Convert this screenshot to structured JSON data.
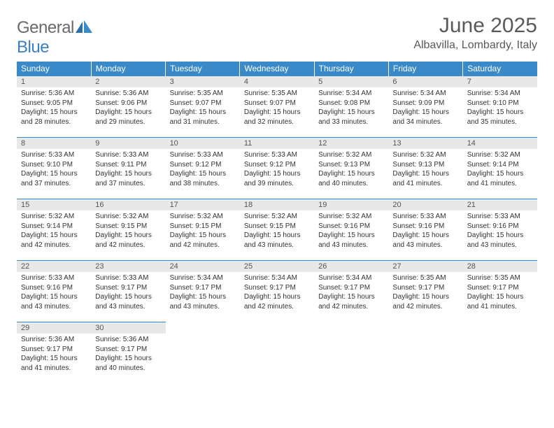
{
  "logo": {
    "gray": "General",
    "blue": "Blue"
  },
  "title": "June 2025",
  "location": "Albavilla, Lombardy, Italy",
  "colors": {
    "header_bg": "#3a8ac9",
    "header_text": "#ffffff",
    "daynum_bg": "#e8e8e8",
    "border": "#3a8ac9",
    "text": "#333333",
    "logo_gray": "#6a6a6a",
    "logo_blue": "#3a7fc4"
  },
  "typography": {
    "title_fontsize": 30,
    "location_fontsize": 16,
    "dayheader_fontsize": 12,
    "daynum_fontsize": 11,
    "body_fontsize": 10
  },
  "day_headers": [
    "Sunday",
    "Monday",
    "Tuesday",
    "Wednesday",
    "Thursday",
    "Friday",
    "Saturday"
  ],
  "grid": {
    "rows": 5,
    "cols": 7
  },
  "days": [
    {
      "n": "1",
      "sr": "5:36 AM",
      "ss": "9:05 PM",
      "dl": "15 hours and 28 minutes."
    },
    {
      "n": "2",
      "sr": "5:36 AM",
      "ss": "9:06 PM",
      "dl": "15 hours and 29 minutes."
    },
    {
      "n": "3",
      "sr": "5:35 AM",
      "ss": "9:07 PM",
      "dl": "15 hours and 31 minutes."
    },
    {
      "n": "4",
      "sr": "5:35 AM",
      "ss": "9:07 PM",
      "dl": "15 hours and 32 minutes."
    },
    {
      "n": "5",
      "sr": "5:34 AM",
      "ss": "9:08 PM",
      "dl": "15 hours and 33 minutes."
    },
    {
      "n": "6",
      "sr": "5:34 AM",
      "ss": "9:09 PM",
      "dl": "15 hours and 34 minutes."
    },
    {
      "n": "7",
      "sr": "5:34 AM",
      "ss": "9:10 PM",
      "dl": "15 hours and 35 minutes."
    },
    {
      "n": "8",
      "sr": "5:33 AM",
      "ss": "9:10 PM",
      "dl": "15 hours and 37 minutes."
    },
    {
      "n": "9",
      "sr": "5:33 AM",
      "ss": "9:11 PM",
      "dl": "15 hours and 37 minutes."
    },
    {
      "n": "10",
      "sr": "5:33 AM",
      "ss": "9:12 PM",
      "dl": "15 hours and 38 minutes."
    },
    {
      "n": "11",
      "sr": "5:33 AM",
      "ss": "9:12 PM",
      "dl": "15 hours and 39 minutes."
    },
    {
      "n": "12",
      "sr": "5:32 AM",
      "ss": "9:13 PM",
      "dl": "15 hours and 40 minutes."
    },
    {
      "n": "13",
      "sr": "5:32 AM",
      "ss": "9:13 PM",
      "dl": "15 hours and 41 minutes."
    },
    {
      "n": "14",
      "sr": "5:32 AM",
      "ss": "9:14 PM",
      "dl": "15 hours and 41 minutes."
    },
    {
      "n": "15",
      "sr": "5:32 AM",
      "ss": "9:14 PM",
      "dl": "15 hours and 42 minutes."
    },
    {
      "n": "16",
      "sr": "5:32 AM",
      "ss": "9:15 PM",
      "dl": "15 hours and 42 minutes."
    },
    {
      "n": "17",
      "sr": "5:32 AM",
      "ss": "9:15 PM",
      "dl": "15 hours and 42 minutes."
    },
    {
      "n": "18",
      "sr": "5:32 AM",
      "ss": "9:15 PM",
      "dl": "15 hours and 43 minutes."
    },
    {
      "n": "19",
      "sr": "5:32 AM",
      "ss": "9:16 PM",
      "dl": "15 hours and 43 minutes."
    },
    {
      "n": "20",
      "sr": "5:33 AM",
      "ss": "9:16 PM",
      "dl": "15 hours and 43 minutes."
    },
    {
      "n": "21",
      "sr": "5:33 AM",
      "ss": "9:16 PM",
      "dl": "15 hours and 43 minutes."
    },
    {
      "n": "22",
      "sr": "5:33 AM",
      "ss": "9:16 PM",
      "dl": "15 hours and 43 minutes."
    },
    {
      "n": "23",
      "sr": "5:33 AM",
      "ss": "9:17 PM",
      "dl": "15 hours and 43 minutes."
    },
    {
      "n": "24",
      "sr": "5:34 AM",
      "ss": "9:17 PM",
      "dl": "15 hours and 43 minutes."
    },
    {
      "n": "25",
      "sr": "5:34 AM",
      "ss": "9:17 PM",
      "dl": "15 hours and 42 minutes."
    },
    {
      "n": "26",
      "sr": "5:34 AM",
      "ss": "9:17 PM",
      "dl": "15 hours and 42 minutes."
    },
    {
      "n": "27",
      "sr": "5:35 AM",
      "ss": "9:17 PM",
      "dl": "15 hours and 42 minutes."
    },
    {
      "n": "28",
      "sr": "5:35 AM",
      "ss": "9:17 PM",
      "dl": "15 hours and 41 minutes."
    },
    {
      "n": "29",
      "sr": "5:36 AM",
      "ss": "9:17 PM",
      "dl": "15 hours and 41 minutes."
    },
    {
      "n": "30",
      "sr": "5:36 AM",
      "ss": "9:17 PM",
      "dl": "15 hours and 40 minutes."
    }
  ],
  "labels": {
    "sunrise": "Sunrise: ",
    "sunset": "Sunset: ",
    "daylight": "Daylight: "
  }
}
